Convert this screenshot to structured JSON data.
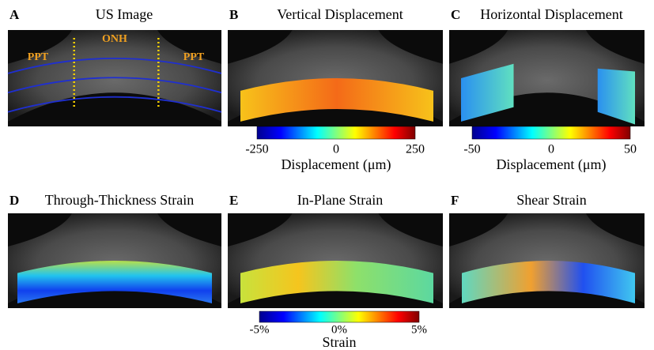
{
  "panels": [
    {
      "letter": "A",
      "title": "US Image",
      "labels": [
        "PPT",
        "ONH",
        "PPT"
      ]
    },
    {
      "letter": "B",
      "title": "Vertical Displacement"
    },
    {
      "letter": "C",
      "title": "Horizontal Displacement"
    },
    {
      "letter": "D",
      "title": "Through-Thickness Strain"
    },
    {
      "letter": "E",
      "title": "In-Plane Strain"
    },
    {
      "letter": "F",
      "title": "Shear Strain"
    }
  ],
  "colorbars": [
    {
      "ticks": [
        "-250",
        "0",
        "250"
      ],
      "label": "Displacement (μm)"
    },
    {
      "ticks": [
        "-50",
        "0",
        "50"
      ],
      "label": "Displacement (μm)"
    },
    {
      "ticks": [
        "-5%",
        "0%",
        "5%"
      ],
      "label": "Strain"
    }
  ]
}
